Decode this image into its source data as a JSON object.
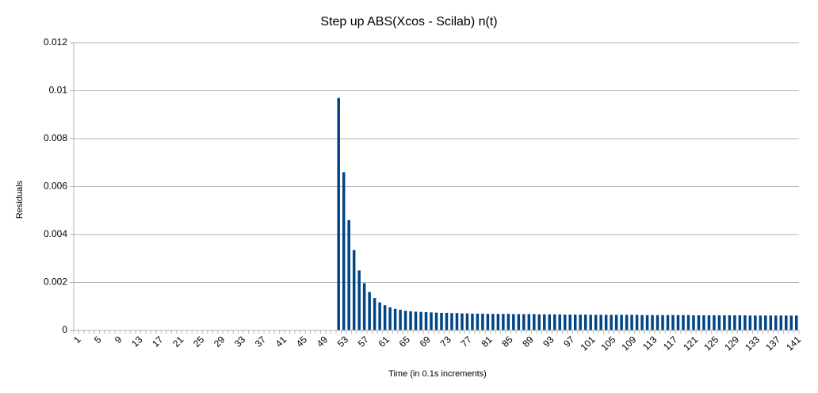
{
  "chart_data": {
    "type": "bar",
    "title": "Step up ABS(Xcos - Scilab) n(t)",
    "x_label": "Time (in 0.1s increments)",
    "y_label": "Residuals",
    "categories": [
      "1",
      null,
      null,
      null,
      "5",
      null,
      null,
      null,
      "9",
      null,
      null,
      null,
      "13",
      null,
      null,
      null,
      "17",
      null,
      null,
      null,
      "21",
      null,
      null,
      null,
      "25",
      null,
      null,
      null,
      "29",
      null,
      null,
      null,
      "33",
      null,
      null,
      null,
      "37",
      null,
      null,
      null,
      "41",
      null,
      null,
      null,
      "45",
      null,
      null,
      null,
      "49",
      null,
      null,
      null,
      "53",
      null,
      null,
      null,
      "57",
      null,
      null,
      null,
      "61",
      null,
      null,
      null,
      "65",
      null,
      null,
      null,
      "69",
      null,
      null,
      null,
      "73",
      null,
      null,
      null,
      "77",
      null,
      null,
      null,
      "81",
      null,
      null,
      null,
      "85",
      null,
      null,
      null,
      "89",
      null,
      null,
      null,
      "93",
      null,
      null,
      null,
      "97",
      null,
      null,
      null,
      "101",
      null,
      null,
      null,
      "105",
      null,
      null,
      null,
      "109",
      null,
      null,
      null,
      "113",
      null,
      null,
      null,
      "117",
      null,
      null,
      null,
      "121",
      null,
      null,
      null,
      "125",
      null,
      null,
      null,
      "129",
      null,
      null,
      null,
      "133",
      null,
      null,
      null,
      "137",
      null,
      null,
      null,
      "141"
    ],
    "values": [
      0,
      0,
      0,
      0,
      0,
      0,
      0,
      0,
      0,
      0,
      0,
      0,
      0,
      0,
      0,
      0,
      0,
      0,
      0,
      0,
      0,
      0,
      0,
      0,
      0,
      0,
      0,
      0,
      0,
      0,
      0,
      0,
      0,
      0,
      0,
      0,
      0,
      0,
      0,
      0,
      0,
      0,
      0,
      0,
      0,
      0,
      0,
      0,
      0,
      0,
      0,
      0.0097,
      0.0066,
      0.0046,
      0.00335,
      0.0025,
      0.00197,
      0.0016,
      0.00135,
      0.00117,
      0.00105,
      0.00096,
      0.0009,
      0.00086,
      0.00082,
      0.0008,
      0.00078,
      0.00077,
      0.00076,
      0.00075,
      0.00074,
      0.00073,
      0.00073,
      0.00072,
      0.00072,
      0.00071,
      0.00071,
      0.0007,
      0.0007,
      0.0007,
      0.00069,
      0.00069,
      0.00069,
      0.00069,
      0.00069,
      0.00068,
      0.00068,
      0.00068,
      0.00068,
      0.00068,
      0.00067,
      0.00067,
      0.00067,
      0.00067,
      0.00067,
      0.00066,
      0.00066,
      0.00066,
      0.00066,
      0.00066,
      0.00065,
      0.00065,
      0.00065,
      0.00065,
      0.00065,
      0.00065,
      0.00065,
      0.00065,
      0.00065,
      0.00065,
      0.00064,
      0.00064,
      0.00064,
      0.00064,
      0.00064,
      0.00064,
      0.00064,
      0.00064,
      0.00064,
      0.00064,
      0.00063,
      0.00063,
      0.00063,
      0.00063,
      0.00063,
      0.00063,
      0.00063,
      0.00063,
      0.00063,
      0.00063,
      0.00063,
      0.00062,
      0.00062,
      0.00062,
      0.00062,
      0.00062,
      0.00062,
      0.00062,
      0.00062,
      0.00062,
      0.00062
    ],
    "color": "#004586",
    "ylim": [
      0,
      0.012
    ],
    "yticks": [
      0,
      0.002,
      0.004,
      0.006,
      0.008,
      0.01,
      0.012
    ],
    "grid": true
  }
}
